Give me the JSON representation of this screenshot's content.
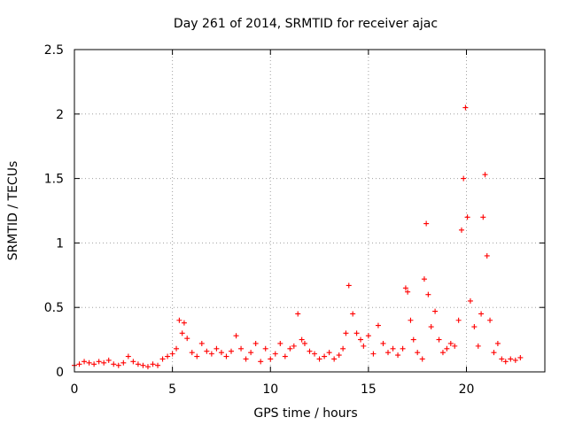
{
  "chart_data": {
    "type": "scatter",
    "title": "Day 261 of 2014, SRMTID for receiver ajac",
    "xlabel": "GPS time / hours",
    "ylabel": "SRMTID / TECUs",
    "xlim": [
      0,
      24
    ],
    "ylim": [
      0,
      2.5
    ],
    "xticks": [
      0,
      5,
      10,
      15,
      20
    ],
    "xtick_labels": [
      "0",
      "5",
      "10",
      "15",
      "20"
    ],
    "yticks": [
      0,
      0.5,
      1,
      1.5,
      2,
      2.5
    ],
    "ytick_labels": [
      "0",
      "0.5",
      "1",
      "1.5",
      "2",
      "2.5"
    ],
    "grid": true,
    "marker": "plus",
    "color": "#ff0000",
    "series": [
      {
        "name": "SRMTID",
        "x": [
          0.0,
          0.25,
          0.5,
          0.75,
          1.0,
          1.25,
          1.5,
          1.75,
          2.0,
          2.25,
          2.5,
          2.75,
          3.0,
          3.25,
          3.5,
          3.75,
          4.0,
          4.25,
          4.5,
          4.75,
          5.0,
          5.2,
          5.35,
          5.5,
          5.6,
          5.75,
          6.0,
          6.25,
          6.5,
          6.75,
          7.0,
          7.25,
          7.5,
          7.75,
          8.0,
          8.25,
          8.5,
          8.75,
          9.0,
          9.25,
          9.5,
          9.75,
          10.0,
          10.25,
          10.5,
          10.75,
          11.0,
          11.2,
          11.4,
          11.6,
          11.75,
          12.0,
          12.25,
          12.5,
          12.75,
          13.0,
          13.25,
          13.5,
          13.7,
          13.85,
          14.0,
          14.2,
          14.4,
          14.6,
          14.75,
          15.0,
          15.25,
          15.5,
          15.75,
          16.0,
          16.25,
          16.5,
          16.75,
          16.9,
          17.0,
          17.15,
          17.3,
          17.5,
          17.75,
          17.85,
          17.95,
          18.05,
          18.2,
          18.4,
          18.6,
          18.8,
          19.0,
          19.2,
          19.4,
          19.6,
          19.75,
          19.85,
          19.95,
          20.05,
          20.2,
          20.4,
          20.6,
          20.75,
          20.85,
          20.95,
          21.05,
          21.2,
          21.4,
          21.6,
          21.8,
          22.0,
          22.25,
          22.5,
          22.75
        ],
        "y": [
          0.05,
          0.06,
          0.08,
          0.07,
          0.06,
          0.08,
          0.07,
          0.09,
          0.06,
          0.05,
          0.07,
          0.12,
          0.08,
          0.06,
          0.05,
          0.04,
          0.06,
          0.05,
          0.1,
          0.12,
          0.14,
          0.18,
          0.4,
          0.3,
          0.38,
          0.26,
          0.15,
          0.12,
          0.22,
          0.16,
          0.14,
          0.18,
          0.15,
          0.12,
          0.16,
          0.28,
          0.18,
          0.1,
          0.15,
          0.22,
          0.08,
          0.18,
          0.1,
          0.14,
          0.22,
          0.12,
          0.18,
          0.2,
          0.45,
          0.25,
          0.22,
          0.16,
          0.14,
          0.1,
          0.12,
          0.15,
          0.1,
          0.13,
          0.18,
          0.3,
          0.67,
          0.45,
          0.3,
          0.25,
          0.2,
          0.28,
          0.14,
          0.36,
          0.22,
          0.15,
          0.18,
          0.13,
          0.18,
          0.65,
          0.62,
          0.4,
          0.25,
          0.15,
          0.1,
          0.72,
          1.15,
          0.6,
          0.35,
          0.47,
          0.25,
          0.15,
          0.18,
          0.22,
          0.2,
          0.4,
          1.1,
          1.5,
          2.05,
          1.2,
          0.55,
          0.35,
          0.2,
          0.45,
          1.2,
          1.53,
          0.9,
          0.4,
          0.15,
          0.22,
          0.1,
          0.08,
          0.1,
          0.09,
          0.11
        ]
      }
    ]
  }
}
